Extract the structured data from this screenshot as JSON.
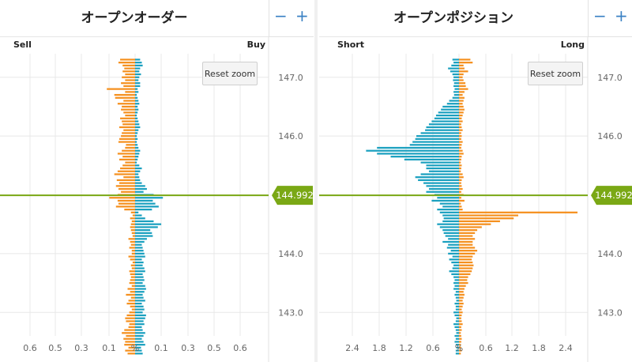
{
  "panels": [
    {
      "title": "オープンオーダー",
      "left_label": "Sell",
      "right_label": "Buy",
      "reset_label": "Reset zoom",
      "zoom_out": "−",
      "zoom_in": "+"
    },
    {
      "title": "オープンポジション",
      "left_label": "Short",
      "right_label": "Long",
      "reset_label": "Reset zoom",
      "zoom_out": "−",
      "zoom_in": "+"
    }
  ],
  "colors": {
    "buy_long": "#1aa0bf",
    "sell_short": "#f5901e",
    "current_price": "#7aa815"
  },
  "chart_data": [
    {
      "type": "bar",
      "orientation": "horizontal-diverging",
      "title": "オープンオーダー",
      "ylim": [
        142.6,
        147.4
      ],
      "y_ticks": [
        147.0,
        146.0,
        145.0,
        144.0,
        143.0
      ],
      "y_tick_labels": [
        "147.0",
        "146.0",
        "",
        "144.0",
        "143.0"
      ],
      "x_tick_labels": [
        "0.6",
        "0.5",
        "0.3",
        "0.1",
        "%",
        "0.1",
        "0.3",
        "0.5",
        "0.6"
      ],
      "current_price": 144.992,
      "current_price_label": "144.992",
      "bin_size": 0.05,
      "series": [
        {
          "name": "Sell",
          "color": "#f5901e",
          "side": "left",
          "values": [
            0.18,
            0.2,
            0.15,
            0.13,
            0.15,
            0.12,
            0.16,
            0.12,
            0.17,
            0.14,
            0.34,
            0.12,
            0.25,
            0.24,
            0.14,
            0.21,
            0.16,
            0.17,
            0.14,
            0.12,
            0.18,
            0.16,
            0.15,
            0.19,
            0.14,
            0.16,
            0.17,
            0.19,
            0.2,
            0.11,
            0.12,
            0.16,
            0.21,
            0.15,
            0.19,
            0.12,
            0.15,
            0.18,
            0.21,
            0.25,
            0.14,
            0.22,
            0.19,
            0.23,
            0.2,
            0.17,
            0.21,
            0.31,
            0.21,
            0.2,
            0.23,
            0.13,
            0.05,
            0.03,
            0.06,
            0.04,
            0.05,
            0.06,
            0.05,
            0.04,
            0.03,
            0.08,
            0.06,
            0.05,
            0.07,
            0.04,
            0.04,
            0.08,
            0.06,
            0.03,
            0.05,
            0.04,
            0.07,
            0.06,
            0.05,
            0.06,
            0.07,
            0.04,
            0.09,
            0.06,
            0.11,
            0.05,
            0.08,
            0.1,
            0.06,
            0.04,
            0.07,
            0.1,
            0.12,
            0.11,
            0.07,
            0.08,
            0.13,
            0.16,
            0.11,
            0.14,
            0.12,
            0.13,
            0.08,
            0.12,
            0.09
          ]
        },
        {
          "name": "Buy",
          "color": "#1aa0bf",
          "side": "right",
          "values": [
            0.06,
            0.08,
            0.09,
            0.06,
            0.05,
            0.07,
            0.05,
            0.04,
            0.06,
            0.06,
            0.03,
            0.04,
            0.02,
            0.03,
            0.04,
            0.05,
            0.03,
            0.04,
            0.03,
            0.02,
            0.03,
            0.04,
            0.05,
            0.06,
            0.04,
            0.03,
            0.02,
            0.03,
            0.02,
            0.03,
            0.04,
            0.06,
            0.05,
            0.04,
            0.03,
            0.02,
            0.05,
            0.08,
            0.06,
            0.04,
            0.05,
            0.06,
            0.08,
            0.12,
            0.14,
            0.1,
            0.22,
            0.33,
            0.21,
            0.24,
            0.28,
            0.2,
            0.04,
            0.08,
            0.12,
            0.22,
            0.31,
            0.27,
            0.18,
            0.2,
            0.21,
            0.14,
            0.11,
            0.08,
            0.09,
            0.1,
            0.11,
            0.12,
            0.08,
            0.1,
            0.09,
            0.11,
            0.12,
            0.09,
            0.1,
            0.11,
            0.09,
            0.12,
            0.13,
            0.11,
            0.09,
            0.1,
            0.12,
            0.08,
            0.1,
            0.11,
            0.09,
            0.13,
            0.12,
            0.1,
            0.11,
            0.08,
            0.09,
            0.12,
            0.1,
            0.08,
            0.1,
            0.12,
            0.07,
            0.08,
            0.09
          ]
        }
      ]
    },
    {
      "type": "bar",
      "orientation": "horizontal-diverging",
      "title": "オープンポジション",
      "ylim": [
        142.6,
        147.4
      ],
      "y_ticks": [
        147.0,
        146.0,
        145.0,
        144.0,
        143.0
      ],
      "y_tick_labels": [
        "147.0",
        "146.0",
        "",
        "144.0",
        "143.0"
      ],
      "x_tick_labels": [
        "2.4",
        "1.8",
        "1.2",
        "0.6",
        "%",
        "0.6",
        "1.2",
        "1.8",
        "2.4"
      ],
      "current_price": 144.992,
      "current_price_label": "144.992",
      "bin_size": 0.05,
      "series": [
        {
          "name": "Short",
          "color": "#1aa0bf",
          "side": "left",
          "values": [
            0.12,
            0.1,
            0.14,
            0.2,
            0.16,
            0.12,
            0.1,
            0.11,
            0.09,
            0.1,
            0.08,
            0.1,
            0.09,
            0.12,
            0.18,
            0.22,
            0.3,
            0.33,
            0.38,
            0.42,
            0.45,
            0.5,
            0.55,
            0.6,
            0.62,
            0.7,
            0.78,
            0.8,
            0.85,
            0.9,
            1.5,
            1.7,
            1.5,
            1.25,
            1.0,
            0.7,
            0.6,
            0.6,
            0.55,
            0.7,
            0.8,
            0.75,
            0.65,
            0.6,
            0.55,
            0.6,
            0.45,
            0.4,
            0.5,
            0.35,
            0.3,
            0.4,
            0.35,
            0.3,
            0.28,
            0.3,
            0.4,
            0.35,
            0.3,
            0.28,
            0.25,
            0.2,
            0.3,
            0.2,
            0.22,
            0.15,
            0.2,
            0.12,
            0.18,
            0.14,
            0.1,
            0.12,
            0.18,
            0.14,
            0.1,
            0.08,
            0.1,
            0.08,
            0.1,
            0.06,
            0.08,
            0.06,
            0.05,
            0.08,
            0.06,
            0.06,
            0.1,
            0.08,
            0.05,
            0.06,
            0.1,
            0.08,
            0.06,
            0.05,
            0.08,
            0.06,
            0.08,
            0.06,
            0.05,
            0.06,
            0.06
          ]
        },
        {
          "name": "Long",
          "color": "#f5901e",
          "side": "right",
          "values": [
            0.25,
            0.3,
            0.1,
            0.12,
            0.2,
            0.1,
            0.08,
            0.1,
            0.14,
            0.15,
            0.2,
            0.12,
            0.08,
            0.12,
            0.1,
            0.08,
            0.1,
            0.12,
            0.1,
            0.08,
            0.06,
            0.08,
            0.05,
            0.06,
            0.08,
            0.05,
            0.06,
            0.05,
            0.08,
            0.06,
            0.05,
            0.08,
            0.1,
            0.06,
            0.05,
            0.04,
            0.06,
            0.05,
            0.04,
            0.08,
            0.1,
            0.06,
            0.05,
            0.06,
            0.08,
            0.05,
            0.1,
            0.05,
            0.12,
            0.04,
            0.06,
            0.08,
            2.6,
            1.3,
            1.2,
            0.9,
            0.7,
            0.5,
            0.4,
            0.35,
            0.3,
            0.35,
            0.3,
            0.3,
            0.35,
            0.4,
            0.35,
            0.3,
            0.28,
            0.3,
            0.32,
            0.3,
            0.28,
            0.25,
            0.2,
            0.18,
            0.2,
            0.15,
            0.12,
            0.1,
            0.12,
            0.1,
            0.08,
            0.1,
            0.08,
            0.06,
            0.08,
            0.06,
            0.05,
            0.06,
            0.08,
            0.05,
            0.06,
            0.04,
            0.05,
            0.06,
            0.05,
            0.04,
            0.05,
            0.06,
            0.04
          ]
        }
      ]
    }
  ]
}
